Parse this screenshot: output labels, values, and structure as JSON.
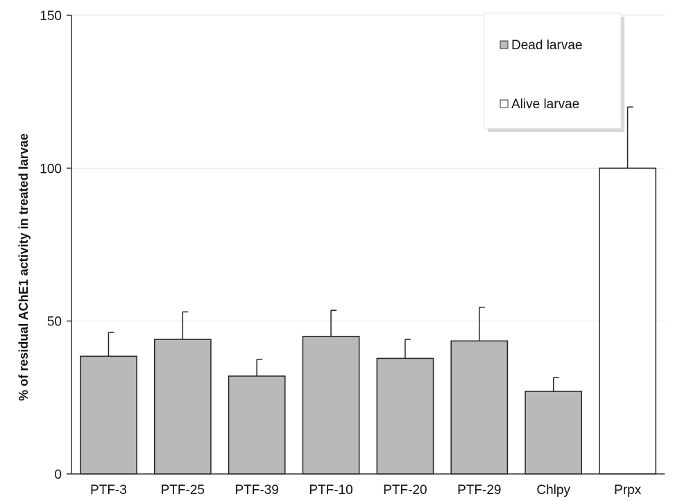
{
  "chart_data": {
    "type": "bar",
    "title": "",
    "xlabel": "",
    "ylabel": "% of residual AChE1 activity in treated larvae",
    "ylim": [
      0,
      150
    ],
    "yticks": [
      0,
      50,
      100,
      150
    ],
    "grid": true,
    "legend_position": "top-right",
    "categories": [
      "PTF-3",
      "PTF-25",
      "PTF-39",
      "PTF-10",
      "PTF-20",
      "PTF-29",
      "Chlpy",
      "Prpx"
    ],
    "values": [
      38.5,
      44,
      32,
      45,
      37.8,
      43.5,
      27,
      100
    ],
    "errors": [
      7.8,
      9,
      5.5,
      8.5,
      6.2,
      11,
      4.5,
      20
    ],
    "groups": [
      "dead",
      "dead",
      "dead",
      "dead",
      "dead",
      "dead",
      "dead",
      "alive"
    ],
    "legend": [
      {
        "key": "dead",
        "label": "Dead larvae",
        "color": "#b9b9b9"
      },
      {
        "key": "alive",
        "label": "Alive larvae",
        "color": "#ffffff"
      }
    ]
  }
}
